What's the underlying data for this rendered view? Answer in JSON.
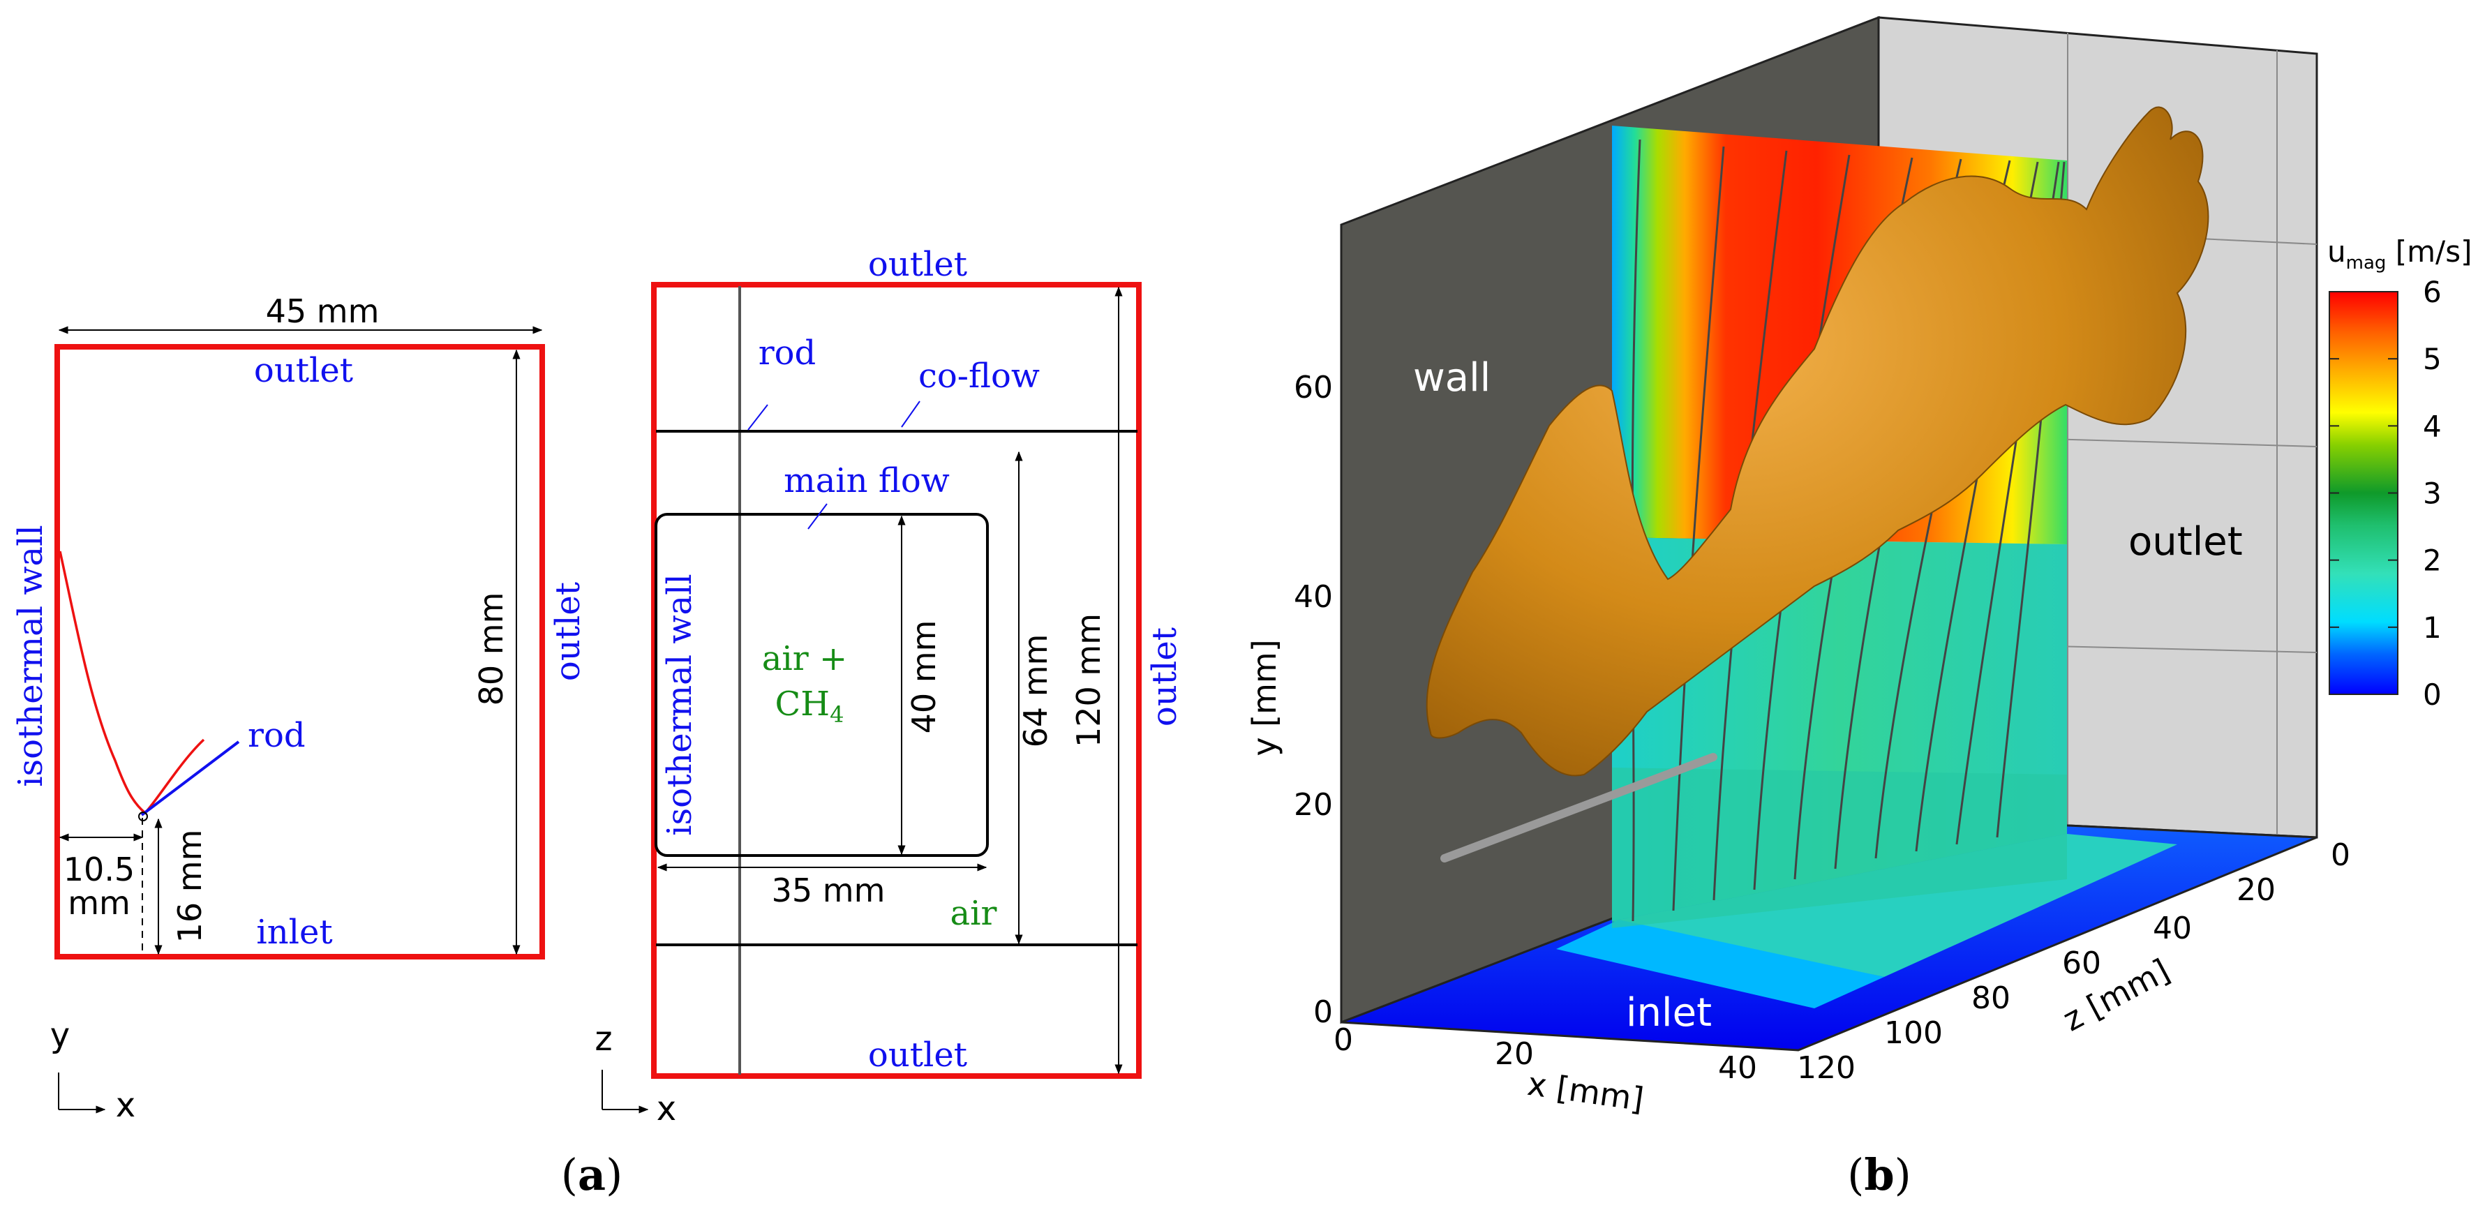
{
  "colors": {
    "domain_border": "#ee1111",
    "boundary_label": "#1010ee",
    "species_label": "#168c16",
    "flame_contour": "#ee1111",
    "rod_line": "#1010ee",
    "flame_surface": "#d38a18",
    "wall_dark": "#555550",
    "back_wall_light": "#d6d6d6"
  },
  "panel_a": {
    "label_open": "(",
    "label_letter": "a",
    "label_close": ")",
    "side_view": {
      "width_dim": "45 mm",
      "height_dim": "80 mm",
      "rod_x_dim_1": "10.5",
      "rod_x_dim_2": "mm",
      "rod_y_dim": "16 mm",
      "top_label": "outlet",
      "right_label": "outlet",
      "left_label": "isothermal wall",
      "bottom_label": "inlet",
      "rod_label": "rod",
      "axis_y": "y",
      "axis_x": "x"
    },
    "top_view": {
      "top_label": "outlet",
      "bottom_label": "outlet",
      "right_label": "outlet",
      "left_label": "isothermal wall",
      "rod_label": "rod",
      "coflow_label": "co-flow",
      "mainflow_label": "main flow",
      "mixture_line1": "air +",
      "mixture_line2": "CH",
      "mixture_sub": "4",
      "air_label": "air",
      "dim_40": "40 mm",
      "dim_35": "35 mm",
      "dim_64": "64 mm",
      "dim_120": "120 mm",
      "axis_z": "z",
      "axis_x": "x"
    }
  },
  "panel_b": {
    "label_open": "(",
    "label_letter": "b",
    "label_close": ")",
    "wall_label": "wall",
    "outlet_label": "outlet",
    "inlet_label": "inlet",
    "y_axis_title": "y [mm]",
    "x_axis_title": "x [mm]",
    "z_axis_title": "z [mm]",
    "y_ticks": [
      "0",
      "20",
      "40",
      "60"
    ],
    "x_ticks": [
      "0",
      "20",
      "40"
    ],
    "z_ticks": [
      "0",
      "20",
      "40",
      "60",
      "80",
      "100",
      "120"
    ],
    "colorbar": {
      "title_main": "u",
      "title_sub": "mag",
      "title_unit": " [m/s]",
      "ticks": [
        "0",
        "1",
        "2",
        "3",
        "4",
        "5",
        "6"
      ],
      "range": [
        0,
        6
      ]
    }
  }
}
